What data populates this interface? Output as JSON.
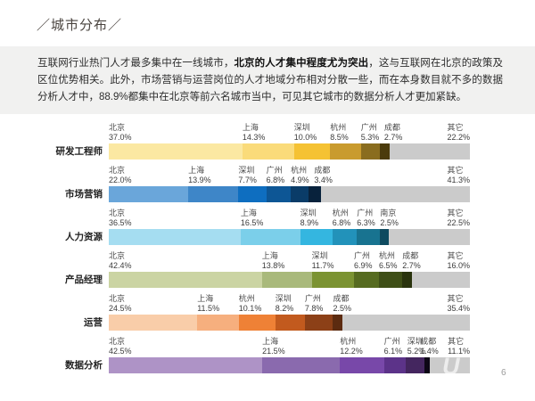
{
  "title": "／城市分布／",
  "intro": {
    "pre": "互联网行业热门人才最多集中在一线城市，",
    "bold": "北京的人才集中程度尤为突出",
    "post": "，这与互联网在北京的政策及区位优势相关。此外，市场营销与运营岗位的人才地域分布相对分散一些，而在本身数目就不多的数据分析人才中，88.9%都集中在北京等前六名城市当中，可见其它城市的数据分析人才更加紧缺。"
  },
  "watermark": "U",
  "page_number": "6",
  "chart_data": {
    "type": "bar",
    "variant": "horizontal-stacked-100percent",
    "unit": "%",
    "other_color": "#cbcbcb",
    "rows": [
      {
        "category": "研发工程师",
        "segments": [
          {
            "city": "北京",
            "value": 37.0,
            "label": "37.0%",
            "color": "#fbe8a2"
          },
          {
            "city": "上海",
            "value": 14.3,
            "label": "14.3%",
            "color": "#fadb7a"
          },
          {
            "city": "深圳",
            "value": 10.0,
            "label": "10.0%",
            "color": "#f5c233"
          },
          {
            "city": "杭州",
            "value": 8.5,
            "label": "8.5%",
            "color": "#c99b2e"
          },
          {
            "city": "广州",
            "value": 5.3,
            "label": "5.3%",
            "color": "#8a6d1f"
          },
          {
            "city": "成都",
            "value": 2.7,
            "label": "2.7%",
            "color": "#4b3b0c"
          },
          {
            "city": "其它",
            "value": 22.2,
            "label": "22.2%",
            "color": "#cbcbcb"
          }
        ]
      },
      {
        "category": "市场营销",
        "segments": [
          {
            "city": "北京",
            "value": 22.0,
            "label": "22.0%",
            "color": "#6aa6da"
          },
          {
            "city": "上海",
            "value": 13.9,
            "label": "13.9%",
            "color": "#3e86c8"
          },
          {
            "city": "深圳",
            "value": 7.7,
            "label": "7.7%",
            "color": "#0e6ec0"
          },
          {
            "city": "广州",
            "value": 6.8,
            "label": "6.8%",
            "color": "#0d5695"
          },
          {
            "city": "杭州",
            "value": 4.9,
            "label": "4.9%",
            "color": "#0a3c68"
          },
          {
            "city": "成都",
            "value": 3.4,
            "label": "3.4%",
            "color": "#08223c"
          },
          {
            "city": "其它",
            "value": 41.3,
            "label": "41.3%",
            "color": "#cbcbcb"
          }
        ]
      },
      {
        "category": "人力资源",
        "segments": [
          {
            "city": "北京",
            "value": 36.5,
            "label": "36.5%",
            "color": "#a5ddf1"
          },
          {
            "city": "上海",
            "value": 16.5,
            "label": "16.5%",
            "color": "#7bcfea"
          },
          {
            "city": "深圳",
            "value": 8.9,
            "label": "8.9%",
            "color": "#34b6e0"
          },
          {
            "city": "杭州",
            "value": 6.8,
            "label": "6.8%",
            "color": "#2292ba"
          },
          {
            "city": "广州",
            "value": 6.3,
            "label": "6.3%",
            "color": "#187390"
          },
          {
            "city": "南京",
            "value": 2.5,
            "label": "2.5%",
            "color": "#0e4a5f"
          },
          {
            "city": "其它",
            "value": 22.5,
            "label": "22.5%",
            "color": "#cbcbcb"
          }
        ]
      },
      {
        "category": "产品经理",
        "segments": [
          {
            "city": "北京",
            "value": 42.4,
            "label": "42.4%",
            "color": "#cbd4a3"
          },
          {
            "city": "上海",
            "value": 13.8,
            "label": "13.8%",
            "color": "#a9b97b"
          },
          {
            "city": "深圳",
            "value": 11.7,
            "label": "11.7%",
            "color": "#7b9332"
          },
          {
            "city": "广州",
            "value": 6.9,
            "label": "6.9%",
            "color": "#566b20"
          },
          {
            "city": "杭州",
            "value": 6.5,
            "label": "6.5%",
            "color": "#3f4f17"
          },
          {
            "city": "成都",
            "value": 2.7,
            "label": "2.7%",
            "color": "#2a340e"
          },
          {
            "city": "其它",
            "value": 16.0,
            "label": "16.0%",
            "color": "#cbcbcb"
          }
        ]
      },
      {
        "category": "运营",
        "segments": [
          {
            "city": "北京",
            "value": 24.5,
            "label": "24.5%",
            "color": "#f9cda9"
          },
          {
            "city": "上海",
            "value": 11.5,
            "label": "11.5%",
            "color": "#f6af7e"
          },
          {
            "city": "杭州",
            "value": 10.1,
            "label": "10.1%",
            "color": "#ef8136"
          },
          {
            "city": "深圳",
            "value": 8.2,
            "label": "8.2%",
            "color": "#c25a1e"
          },
          {
            "city": "广州",
            "value": 7.8,
            "label": "7.8%",
            "color": "#8c4017"
          },
          {
            "city": "成都",
            "value": 2.5,
            "label": "2.5%",
            "color": "#5c2b10"
          },
          {
            "city": "其它",
            "value": 35.4,
            "label": "35.4%",
            "color": "#cbcbcb"
          }
        ]
      },
      {
        "category": "数据分析",
        "segments": [
          {
            "city": "北京",
            "value": 42.5,
            "label": "42.5%",
            "color": "#ae93c6"
          },
          {
            "city": "上海",
            "value": 21.5,
            "label": "21.5%",
            "color": "#8a6aae"
          },
          {
            "city": "杭州",
            "value": 12.2,
            "label": "12.2%",
            "color": "#7848a9"
          },
          {
            "city": "广州",
            "value": 6.1,
            "label": "6.1%",
            "color": "#5c3389"
          },
          {
            "city": "深圳",
            "value": 5.2,
            "label": "5.2%",
            "color": "#44265f"
          },
          {
            "city": "成都",
            "value": 1.4,
            "label": "1.4%",
            "color": "#0d0716"
          },
          {
            "city": "其它",
            "value": 11.1,
            "label": "11.1%",
            "color": "#cbcbcb"
          }
        ]
      }
    ]
  }
}
